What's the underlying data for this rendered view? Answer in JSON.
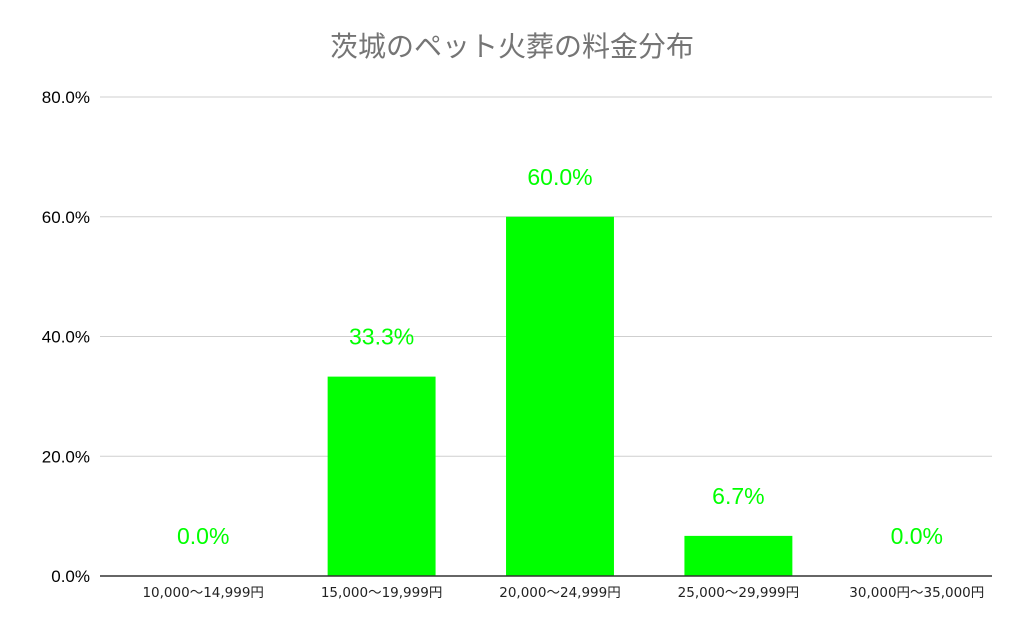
{
  "chart_data": {
    "type": "bar",
    "title": "茨城のペット火葬の料金分布",
    "categories": [
      "10,000〜14,999円",
      "15,000〜19,999円",
      "20,000〜24,999円",
      "25,000〜29,999円",
      "30,000円〜35,000円"
    ],
    "values": [
      0.0,
      33.3,
      60.0,
      6.7,
      0.0
    ],
    "data_labels": [
      "0.0%",
      "33.3%",
      "60.0%",
      "6.7%",
      "0.0%"
    ],
    "yticks": [
      "0.0%",
      "20.0%",
      "40.0%",
      "60.0%",
      "80.0%"
    ],
    "ylim": [
      0,
      80
    ],
    "xlabel": "",
    "ylabel": "",
    "grid": true,
    "legend": "none",
    "colors": {
      "bar": "#00ff00",
      "data_label": "#00ff00",
      "title": "#757575"
    }
  }
}
